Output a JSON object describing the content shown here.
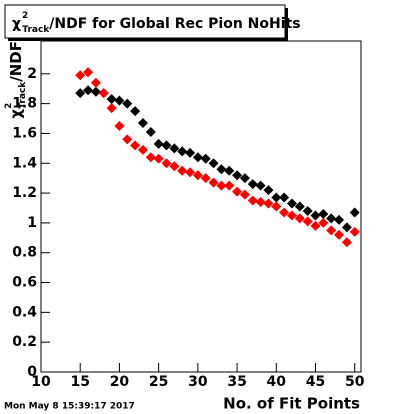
{
  "chart_data": {
    "type": "scatter",
    "title": {
      "symbol": "χ",
      "sup": "2",
      "sub": "Track",
      "rest": "/NDF for Global Rec Pion NoHits"
    },
    "y_label": {
      "symbol": "χ",
      "sup": "2",
      "sub": "Track",
      "rest": "/NDF"
    },
    "x_label": "No. of Fit Points",
    "timestamp": "Mon May  8 15:39:17 2017",
    "x": [
      15,
      16,
      17,
      18,
      19,
      20,
      21,
      22,
      23,
      24,
      25,
      26,
      27,
      28,
      29,
      30,
      31,
      32,
      33,
      34,
      35,
      36,
      37,
      38,
      39,
      40,
      41,
      42,
      43,
      44,
      45,
      46,
      47,
      48,
      49,
      50
    ],
    "series": [
      {
        "color": "#000000",
        "values": [
          1.87,
          1.89,
          1.88,
          1.87,
          1.83,
          1.82,
          1.8,
          1.75,
          1.67,
          1.61,
          1.53,
          1.52,
          1.5,
          1.48,
          1.47,
          1.44,
          1.43,
          1.4,
          1.36,
          1.35,
          1.32,
          1.3,
          1.26,
          1.25,
          1.22,
          1.17,
          1.17,
          1.13,
          1.11,
          1.08,
          1.05,
          1.06,
          1.03,
          1.02,
          0.97,
          1.07
        ]
      },
      {
        "color": "#ff0000",
        "values": [
          1.99,
          2.01,
          1.94,
          1.87,
          1.77,
          1.65,
          1.56,
          1.52,
          1.49,
          1.44,
          1.43,
          1.4,
          1.38,
          1.35,
          1.34,
          1.32,
          1.3,
          1.27,
          1.25,
          1.25,
          1.21,
          1.19,
          1.15,
          1.14,
          1.13,
          1.11,
          1.07,
          1.05,
          1.03,
          1.01,
          0.98,
          1.0,
          0.95,
          0.92,
          0.87,
          0.94
        ]
      }
    ],
    "xlim": [
      10,
      50.8
    ],
    "ylim": [
      0,
      2.22
    ],
    "xticks": [
      10,
      15,
      20,
      25,
      30,
      35,
      40,
      45,
      50
    ],
    "yticks": [
      0,
      0.2,
      0.4,
      0.6,
      0.8,
      1,
      1.2,
      1.4,
      1.6,
      1.8,
      2
    ]
  }
}
